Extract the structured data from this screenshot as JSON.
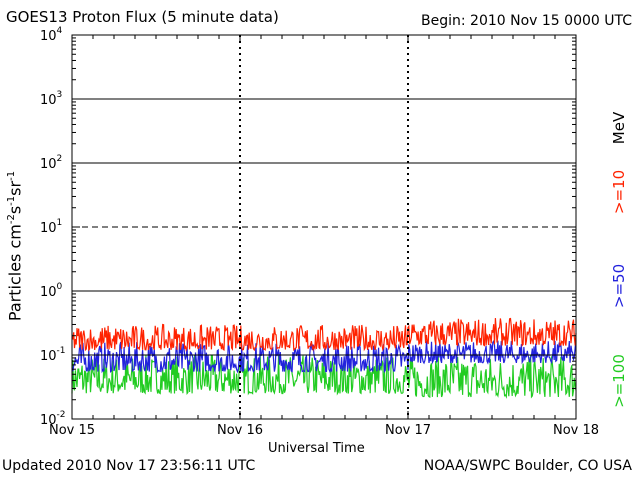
{
  "header": {
    "title": "GOES13 Proton Flux (5 minute data)",
    "begin": "Begin: 2010 Nov 15 0000 UTC"
  },
  "footer": {
    "updated": "Updated 2010 Nov 17 23:56:11 UTC",
    "source": "NOAA/SWPC Boulder, CO USA"
  },
  "chart_data": {
    "type": "line",
    "title": "GOES13 Proton Flux (5 minute data)",
    "xlabel": "Universal Time",
    "ylabel": "Particles cm⁻²s⁻¹sr⁻¹",
    "ylabel_parts": [
      "Particles cm",
      "-2",
      "s",
      "-1",
      "sr",
      "-1"
    ],
    "yscale": "log",
    "ylim": [
      0.01,
      10000
    ],
    "yticks": [
      {
        "base": "10",
        "exp": "-2",
        "value": 0.01
      },
      {
        "base": "10",
        "exp": "-1",
        "value": 0.1
      },
      {
        "base": "10",
        "exp": "0",
        "value": 1
      },
      {
        "base": "10",
        "exp": "1",
        "value": 10
      },
      {
        "base": "10",
        "exp": "2",
        "value": 100
      },
      {
        "base": "10",
        "exp": "3",
        "value": 1000
      },
      {
        "base": "10",
        "exp": "4",
        "value": 10000
      }
    ],
    "xticks": [
      "Nov 15",
      "Nov 16",
      "Nov 17",
      "Nov 18"
    ],
    "xlim_days": [
      0,
      3
    ],
    "reference_lines": [
      {
        "value": 1,
        "style": "solid"
      },
      {
        "value": 10,
        "style": "dashed"
      },
      {
        "value": 100,
        "style": "solid"
      },
      {
        "value": 1000,
        "style": "solid"
      },
      {
        "value": 0.1,
        "style": "solid"
      }
    ],
    "unit_label": "MeV",
    "series": [
      {
        "name": ">=10",
        "color": "#ff2200",
        "segments": [
          {
            "from": 0,
            "to": 2,
            "low": 0.12,
            "high": 0.3
          },
          {
            "from": 2,
            "to": 3,
            "low": 0.14,
            "high": 0.38
          }
        ]
      },
      {
        "name": ">=50",
        "color": "#2222dd",
        "segments": [
          {
            "from": 0,
            "to": 2,
            "low": 0.055,
            "high": 0.16
          },
          {
            "from": 2,
            "to": 3,
            "low": 0.075,
            "high": 0.17
          }
        ]
      },
      {
        "name": ">=100",
        "color": "#22cc22",
        "segments": [
          {
            "from": 0,
            "to": 2,
            "low": 0.025,
            "high": 0.1
          },
          {
            "from": 2,
            "to": 3,
            "low": 0.022,
            "high": 0.1
          }
        ]
      }
    ]
  }
}
